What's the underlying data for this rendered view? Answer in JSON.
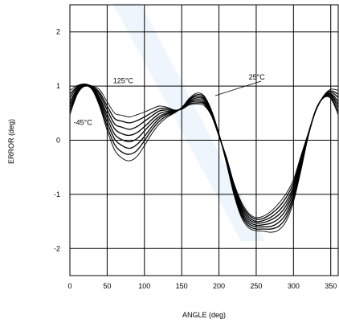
{
  "chart_data": {
    "type": "line",
    "title": "",
    "xlabel": "ANGLE (deg)",
    "ylabel": "ERROR (deg)",
    "xlim": [
      0,
      360
    ],
    "ylim": [
      -2.5,
      2.5
    ],
    "x_ticks": [
      "0",
      "50",
      "100",
      "150",
      "200",
      "250",
      "300",
      "350"
    ],
    "y_ticks": [
      "2",
      "1",
      "0",
      "-1",
      "-2"
    ],
    "grid": true,
    "annotations": [
      {
        "text": "125°C",
        "x": 58,
        "y": 1.05
      },
      {
        "text": "-45°C",
        "x": 5,
        "y": 0.28
      },
      {
        "text": "25°C",
        "x": 240,
        "y": 1.12
      }
    ],
    "x": [
      0,
      10,
      20,
      30,
      40,
      50,
      60,
      70,
      80,
      90,
      100,
      110,
      120,
      130,
      140,
      150,
      160,
      170,
      180,
      190,
      200,
      210,
      220,
      230,
      240,
      250,
      260,
      270,
      280,
      290,
      300,
      310,
      320,
      330,
      340,
      350,
      360
    ],
    "series": [
      {
        "values": [
          0.47,
          0.85,
          1.0,
          0.93,
          0.62,
          0.18,
          -0.18,
          -0.33,
          -0.38,
          -0.3,
          -0.1,
          0.12,
          0.3,
          0.42,
          0.5,
          0.6,
          0.77,
          0.87,
          0.82,
          0.55,
          0.12,
          -0.42,
          -1.0,
          -1.42,
          -1.62,
          -1.67,
          -1.68,
          -1.7,
          -1.66,
          -1.5,
          -1.14,
          -0.56,
          0.09,
          0.57,
          0.78,
          0.77,
          0.47
        ]
      },
      {
        "values": [
          0.53,
          0.87,
          1.0,
          0.94,
          0.66,
          0.25,
          -0.08,
          -0.22,
          -0.26,
          -0.19,
          -0.01,
          0.19,
          0.35,
          0.45,
          0.51,
          0.6,
          0.75,
          0.84,
          0.8,
          0.54,
          0.11,
          -0.4,
          -0.97,
          -1.38,
          -1.58,
          -1.64,
          -1.64,
          -1.64,
          -1.59,
          -1.43,
          -1.08,
          -0.53,
          0.09,
          0.56,
          0.78,
          0.79,
          0.53
        ]
      },
      {
        "values": [
          0.6,
          0.89,
          1.01,
          0.95,
          0.71,
          0.33,
          0.02,
          -0.1,
          -0.15,
          -0.08,
          0.07,
          0.25,
          0.4,
          0.48,
          0.52,
          0.6,
          0.74,
          0.81,
          0.77,
          0.52,
          0.11,
          -0.39,
          -0.94,
          -1.34,
          -1.54,
          -1.6,
          -1.6,
          -1.59,
          -1.52,
          -1.36,
          -1.02,
          -0.49,
          0.1,
          0.56,
          0.79,
          0.82,
          0.6
        ]
      },
      {
        "values": [
          0.66,
          0.92,
          1.01,
          0.96,
          0.75,
          0.41,
          0.11,
          0.01,
          -0.03,
          0.03,
          0.17,
          0.32,
          0.44,
          0.5,
          0.53,
          0.59,
          0.72,
          0.78,
          0.75,
          0.51,
          0.1,
          -0.37,
          -0.91,
          -1.3,
          -1.5,
          -1.57,
          -1.56,
          -1.53,
          -1.45,
          -1.28,
          -0.96,
          -0.45,
          0.11,
          0.56,
          0.79,
          0.84,
          0.66
        ]
      },
      {
        "values": [
          0.72,
          0.94,
          1.02,
          0.97,
          0.79,
          0.48,
          0.21,
          0.12,
          0.09,
          0.14,
          0.25,
          0.38,
          0.49,
          0.53,
          0.53,
          0.59,
          0.7,
          0.75,
          0.72,
          0.49,
          0.09,
          -0.35,
          -0.88,
          -1.26,
          -1.46,
          -1.53,
          -1.52,
          -1.47,
          -1.38,
          -1.21,
          -0.9,
          -0.41,
          0.12,
          0.55,
          0.79,
          0.86,
          0.72
        ]
      },
      {
        "values": [
          0.79,
          0.97,
          1.03,
          0.98,
          0.84,
          0.56,
          0.3,
          0.24,
          0.2,
          0.25,
          0.35,
          0.45,
          0.54,
          0.56,
          0.54,
          0.58,
          0.69,
          0.72,
          0.69,
          0.48,
          0.08,
          -0.34,
          -0.85,
          -1.22,
          -1.42,
          -1.5,
          -1.48,
          -1.42,
          -1.31,
          -1.14,
          -0.85,
          -0.37,
          0.12,
          0.55,
          0.8,
          0.89,
          0.79
        ]
      },
      {
        "values": [
          0.85,
          0.99,
          1.03,
          0.99,
          0.88,
          0.63,
          0.4,
          0.35,
          0.32,
          0.36,
          0.43,
          0.51,
          0.58,
          0.59,
          0.55,
          0.58,
          0.67,
          0.69,
          0.67,
          0.46,
          0.08,
          -0.32,
          -0.82,
          -1.18,
          -1.38,
          -1.46,
          -1.44,
          -1.36,
          -1.24,
          -1.06,
          -0.79,
          -0.33,
          0.13,
          0.55,
          0.8,
          0.91,
          0.85
        ]
      },
      {
        "values": [
          0.92,
          1.01,
          1.04,
          1.0,
          0.93,
          0.71,
          0.5,
          0.46,
          0.43,
          0.47,
          0.52,
          0.58,
          0.63,
          0.61,
          0.56,
          0.57,
          0.65,
          0.67,
          0.64,
          0.45,
          0.07,
          -0.31,
          -0.79,
          -1.14,
          -1.35,
          -1.43,
          -1.4,
          -1.31,
          -1.17,
          -0.99,
          -0.73,
          -0.29,
          0.14,
          0.55,
          0.81,
          0.94,
          0.92
        ]
      }
    ]
  }
}
